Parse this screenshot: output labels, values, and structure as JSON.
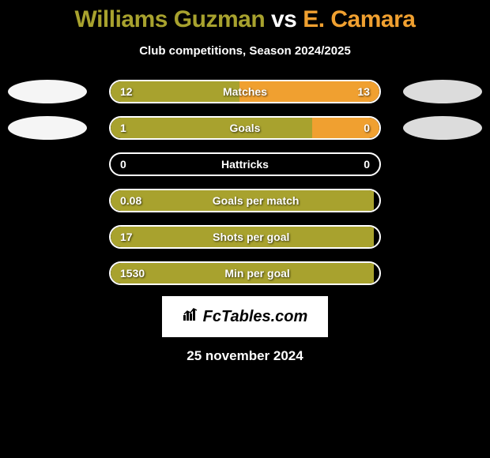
{
  "title": {
    "player1": "Williams Guzman",
    "vs": " vs ",
    "player2": "E. Camara",
    "color1": "#a8a22e",
    "color2": "#f0a030"
  },
  "subtitle": "Club competitions, Season 2024/2025",
  "colors": {
    "bar_left": "#a8a22e",
    "bar_right": "#f0a030",
    "oval_left": "#f5f5f5",
    "oval_right": "#dcdcdc",
    "background": "#000000",
    "border": "#ffffff",
    "text": "#ffffff"
  },
  "stats": [
    {
      "label": "Matches",
      "left_val": "12",
      "right_val": "13",
      "left_pct": 48,
      "right_pct": 52,
      "show_ovals": true
    },
    {
      "label": "Goals",
      "left_val": "1",
      "right_val": "0",
      "left_pct": 75,
      "right_pct": 25,
      "show_ovals": true
    },
    {
      "label": "Hattricks",
      "left_val": "0",
      "right_val": "0",
      "left_pct": 0,
      "right_pct": 0,
      "show_ovals": false
    },
    {
      "label": "Goals per match",
      "left_val": "0.08",
      "right_val": "",
      "left_pct": 98,
      "right_pct": 0,
      "show_ovals": false
    },
    {
      "label": "Shots per goal",
      "left_val": "17",
      "right_val": "",
      "left_pct": 98,
      "right_pct": 0,
      "show_ovals": false
    },
    {
      "label": "Min per goal",
      "left_val": "1530",
      "right_val": "",
      "left_pct": 98,
      "right_pct": 0,
      "show_ovals": false
    }
  ],
  "logo": "FcTables.com",
  "date": "25 november 2024"
}
